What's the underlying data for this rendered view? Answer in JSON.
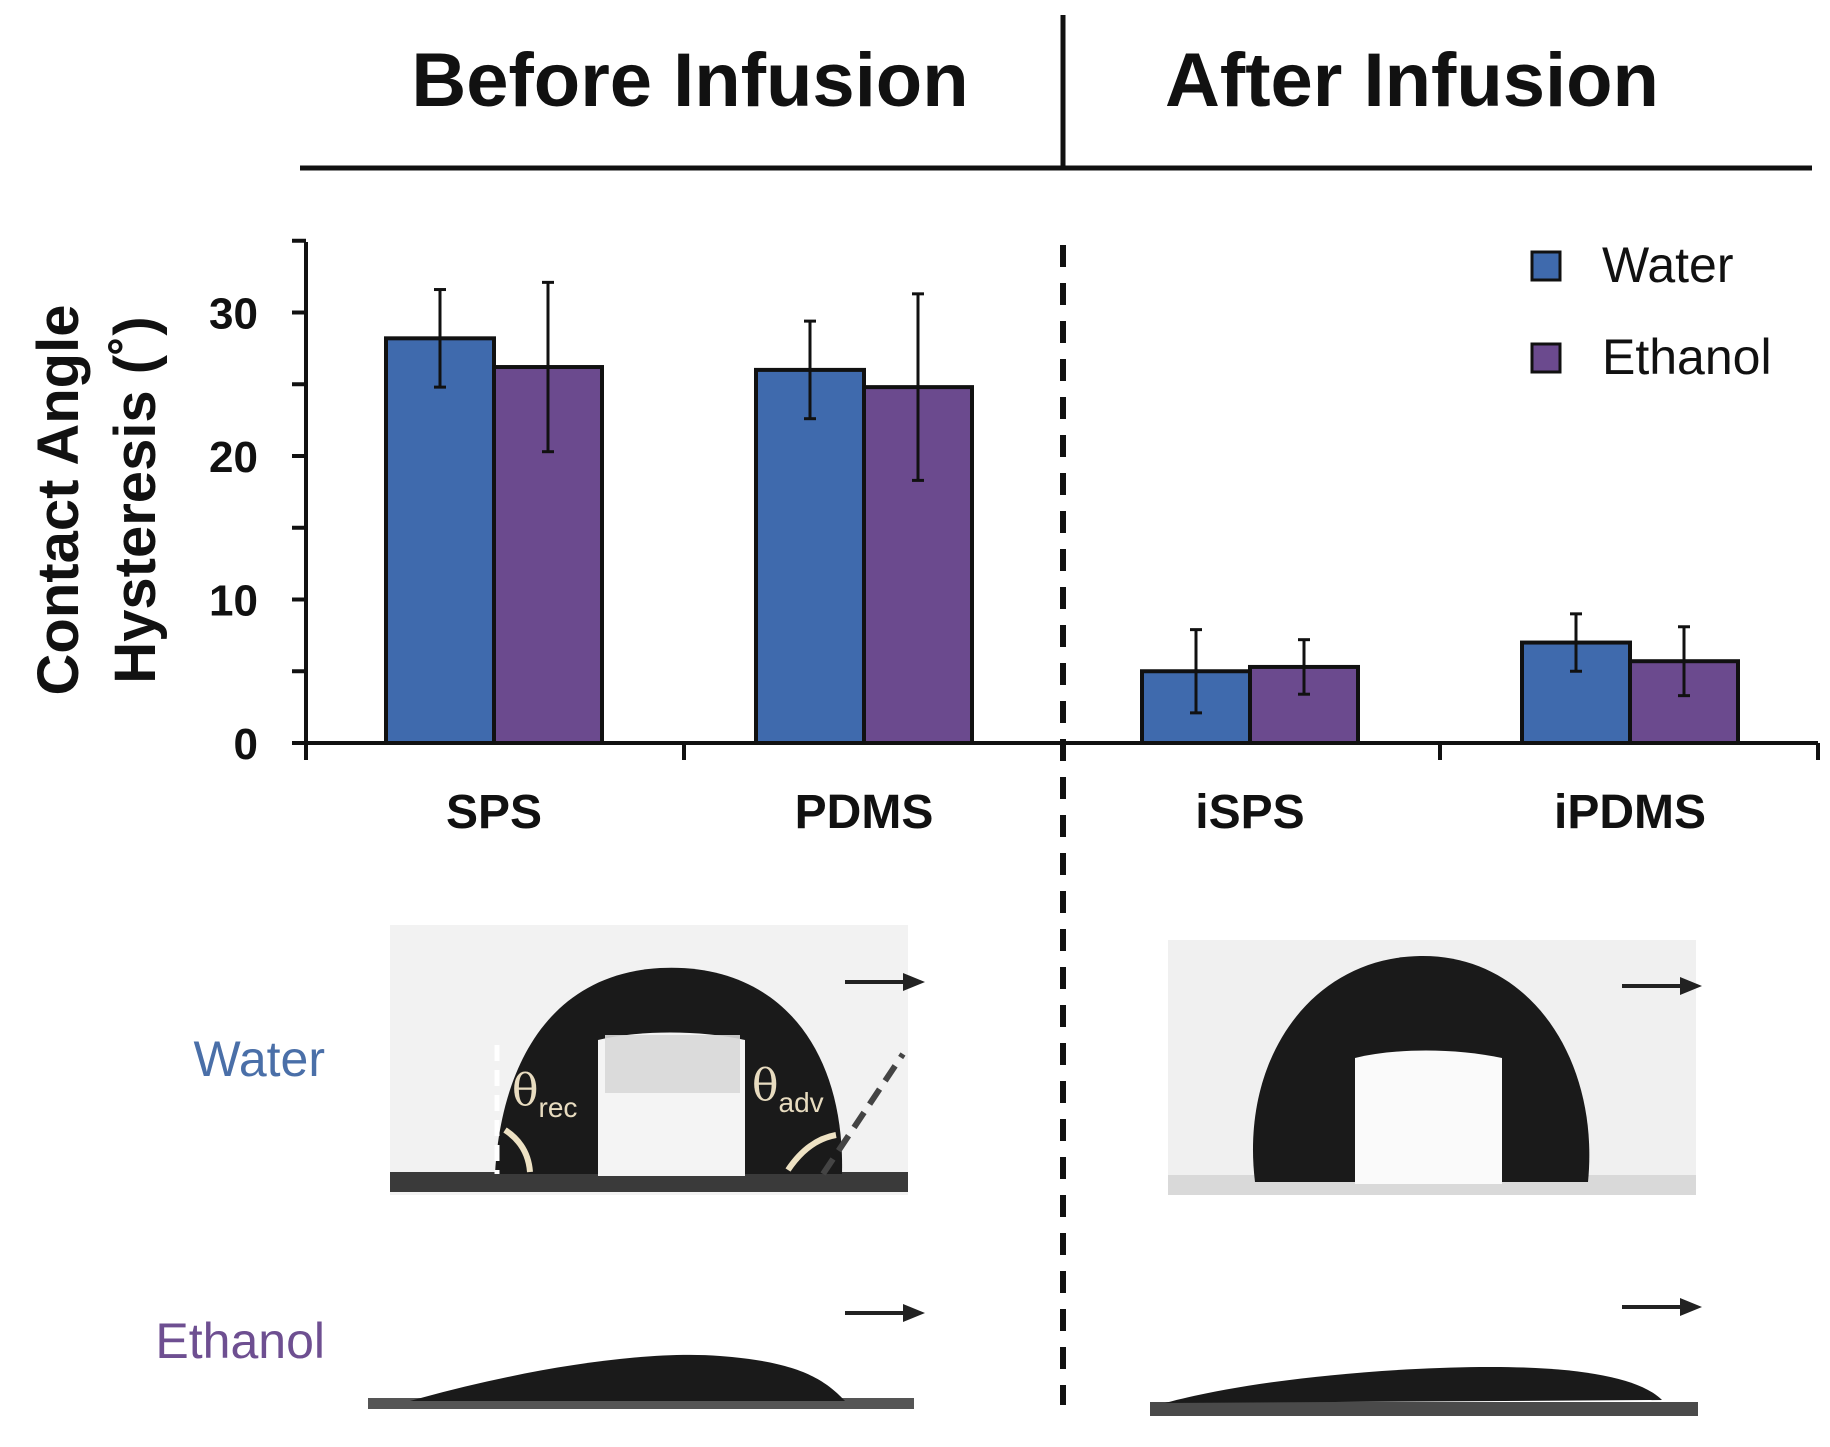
{
  "headers": {
    "before": "Before Infusion",
    "after": "After Infusion"
  },
  "row_labels": {
    "water": "Water",
    "ethanol": "Ethanol"
  },
  "angle_labels": {
    "theta": "θ",
    "rec": "rec",
    "adv": "adv"
  },
  "colors": {
    "water": "#3f6aad",
    "ethanol": "#6b4a8e",
    "water_label": "#4a6fa8",
    "ethanol_label": "#6e4f91"
  },
  "chart_data": {
    "type": "bar",
    "title": "",
    "ylabel_line1": "Contact Angle",
    "ylabel_line2": "Hysteresis (˚)",
    "xlabel": "",
    "ylim": [
      0,
      35
    ],
    "yticks": [
      0,
      10,
      20,
      30
    ],
    "categories": [
      "SPS",
      "PDMS",
      "iSPS",
      "iPDMS"
    ],
    "series": [
      {
        "name": "Water",
        "values": [
          28.2,
          26.0,
          5.0,
          7.0
        ],
        "errors": [
          3.4,
          3.4,
          2.9,
          2.0
        ]
      },
      {
        "name": "Ethanol",
        "values": [
          26.2,
          24.8,
          5.3,
          5.7
        ],
        "errors": [
          5.9,
          6.5,
          1.9,
          2.4
        ]
      }
    ],
    "legend_position": "top-right",
    "grid": false
  }
}
